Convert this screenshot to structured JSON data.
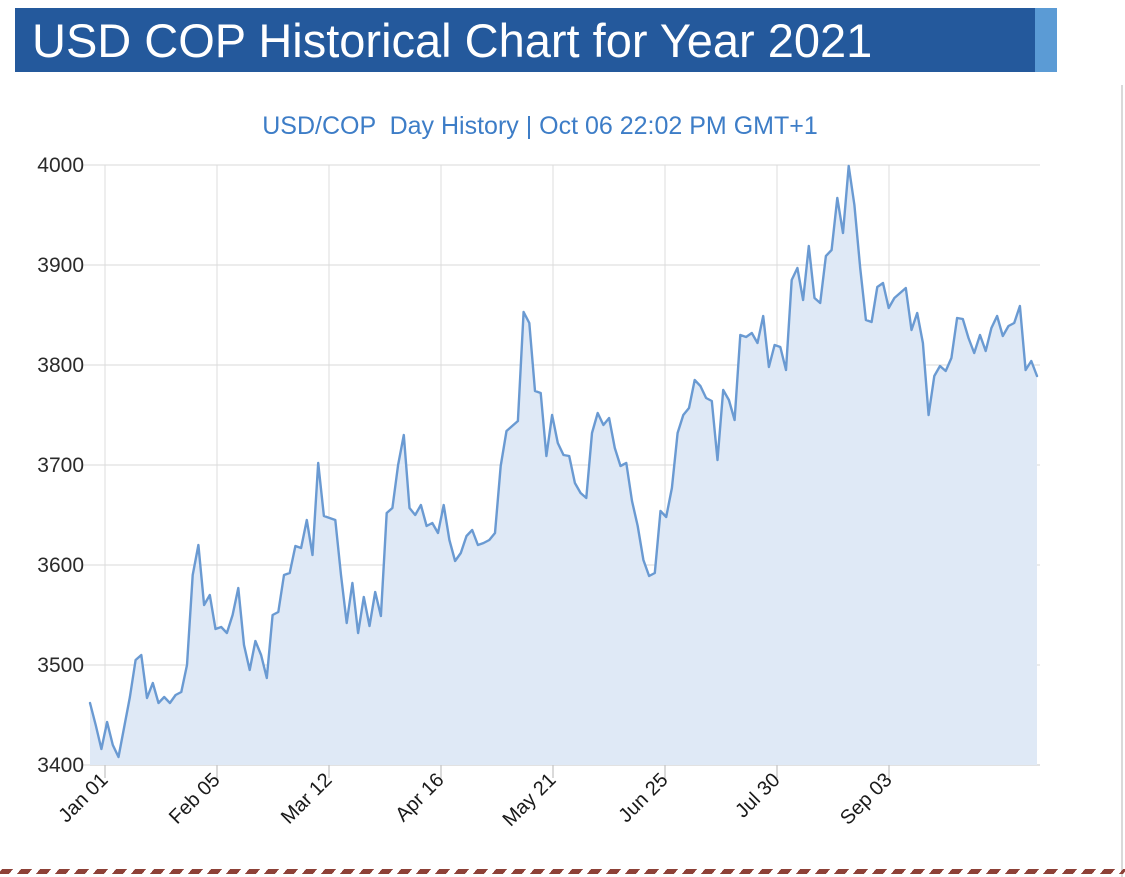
{
  "header": {
    "title": "USD COP Historical Chart for Year 2021",
    "bar_color": "#24599c",
    "accent_color": "#5b9bd5",
    "text_color": "#ffffff"
  },
  "chart_data": {
    "type": "area",
    "title": "USD/COP  Day History | Oct 06 22:02 PM GMT+1",
    "title_color": "#3d7dc7",
    "series": [
      {
        "name": "USD/COP",
        "values": [
          3462,
          3440,
          3416,
          3443,
          3420,
          3408,
          3438,
          3468,
          3505,
          3510,
          3467,
          3482,
          3462,
          3468,
          3462,
          3470,
          3473,
          3500,
          3590,
          3620,
          3560,
          3570,
          3536,
          3538,
          3532,
          3550,
          3577,
          3520,
          3495,
          3524,
          3510,
          3487,
          3550,
          3553,
          3590,
          3592,
          3619,
          3617,
          3645,
          3610,
          3702,
          3649,
          3647,
          3645,
          3590,
          3542,
          3582,
          3532,
          3568,
          3539,
          3573,
          3549,
          3652,
          3657,
          3700,
          3730,
          3657,
          3650,
          3660,
          3639,
          3642,
          3632,
          3660,
          3625,
          3604,
          3612,
          3629,
          3635,
          3620,
          3622,
          3625,
          3632,
          3699,
          3734,
          3739,
          3744,
          3853,
          3842,
          3774,
          3772,
          3709,
          3750,
          3722,
          3710,
          3709,
          3682,
          3672,
          3667,
          3732,
          3752,
          3740,
          3747,
          3717,
          3699,
          3702,
          3664,
          3639,
          3605,
          3589,
          3592,
          3654,
          3648,
          3677,
          3732,
          3750,
          3757,
          3785,
          3779,
          3767,
          3764,
          3705,
          3775,
          3765,
          3745,
          3830,
          3828,
          3832,
          3822,
          3849,
          3798,
          3820,
          3818,
          3795,
          3885,
          3897,
          3865,
          3919,
          3867,
          3862,
          3909,
          3915,
          3967,
          3932,
          3999,
          3960,
          3897,
          3845,
          3843,
          3878,
          3882,
          3857,
          3867,
          3872,
          3877,
          3835,
          3852,
          3822,
          3750,
          3789,
          3799,
          3794,
          3807,
          3847,
          3846,
          3827,
          3812,
          3830,
          3814,
          3837,
          3849,
          3829,
          3839,
          3842,
          3859,
          3795,
          3804,
          3789
        ]
      }
    ],
    "x_tick_labels": [
      "Jan 01",
      "Feb 05",
      "Mar 12",
      "Apr 16",
      "May 21",
      "Jun 25",
      "Jul 30",
      "Sep 03"
    ],
    "y_ticks": [
      3400,
      3500,
      3600,
      3700,
      3800,
      3900,
      4000
    ],
    "ylim": [
      3400,
      4000
    ],
    "xlabel": "",
    "ylabel": "",
    "grid": true,
    "legend": "none",
    "line_color": "#6a9ad2",
    "fill_color": "#dfe9f6",
    "grid_color": "#d9d9d9",
    "axis_color": "#c6c6c6",
    "tick_text_color": "#2b2b2b"
  },
  "decor": {
    "bottom_dash_color": "#8d4137",
    "right_divider_color": "#d9d9d9"
  }
}
